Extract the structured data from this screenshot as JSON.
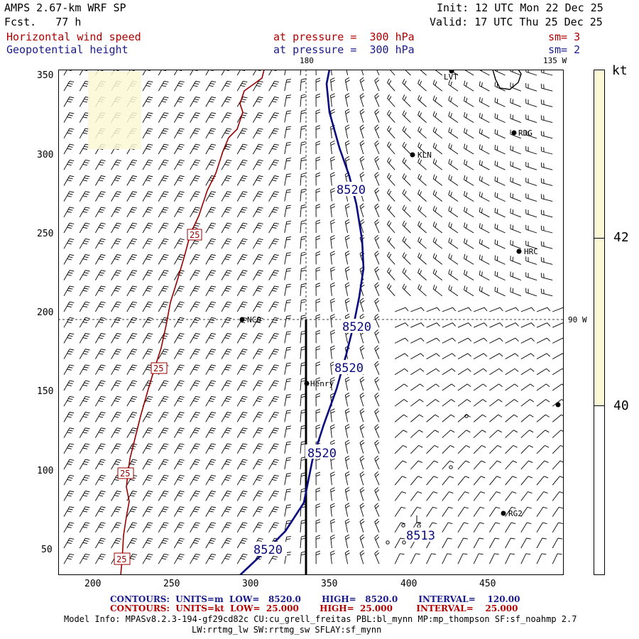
{
  "header": {
    "model": "AMPS 2.67-km WRF SP",
    "forecast": "Fcst.   77 h",
    "init": "Init: 12 UTC Mon 22 Dec 25",
    "valid": "Valid: 17 UTC Thu 25 Dec 25",
    "field1_name": "Horizontal wind speed",
    "field1_level": "at pressure =  300 hPa",
    "field1_smooth": "sm= 3",
    "field2_name": "Geopotential height",
    "field2_level": "at pressure =  300 hPa",
    "field2_smooth": "sm= 2"
  },
  "map": {
    "meridian_top_label": "180",
    "meridian_135_label": "135 W",
    "meridian_90_label": "90 W",
    "x_ticks": [
      "200",
      "250",
      "300",
      "350",
      "400",
      "450"
    ],
    "y_ticks": [
      "350",
      "300",
      "250",
      "200",
      "150",
      "100",
      "50"
    ],
    "stations": [
      "LVT",
      "RDG",
      "KLN",
      "HRC",
      "NCO",
      "Henry",
      "RG2"
    ],
    "height_labels": [
      "8520",
      "8520",
      "8520",
      "8520",
      "8520",
      "8513"
    ],
    "wind_labels": [
      "25",
      "25",
      "25",
      "25"
    ],
    "colors": {
      "wind_contour": "#990000",
      "height_contour": "#0a0a80",
      "colorbar_fill": "#fcf7d4"
    }
  },
  "colorbar": {
    "unit": "kt",
    "ticks": [
      "42",
      "40"
    ]
  },
  "footer": {
    "contours1": "CONTOURS:  UNITS=m  LOW=   8520.0       HIGH=   8520.0       INTERVAL=    120.00",
    "contours2": "CONTOURS:  UNITS=kt  LOW=  25.000       HIGH=  25.000        INTERVAL=    25.000",
    "model_info": "Model Info: MPASv8.2.3-194-gf29cd82c CU:cu_grell_freitas PBL:bl_mynn MP:mp_thompson SF:sf_noahmp 2.7",
    "model_info2": "LW:rrtmg_lw SW:rrtmg_sw SFLAY:sf_mynn"
  }
}
